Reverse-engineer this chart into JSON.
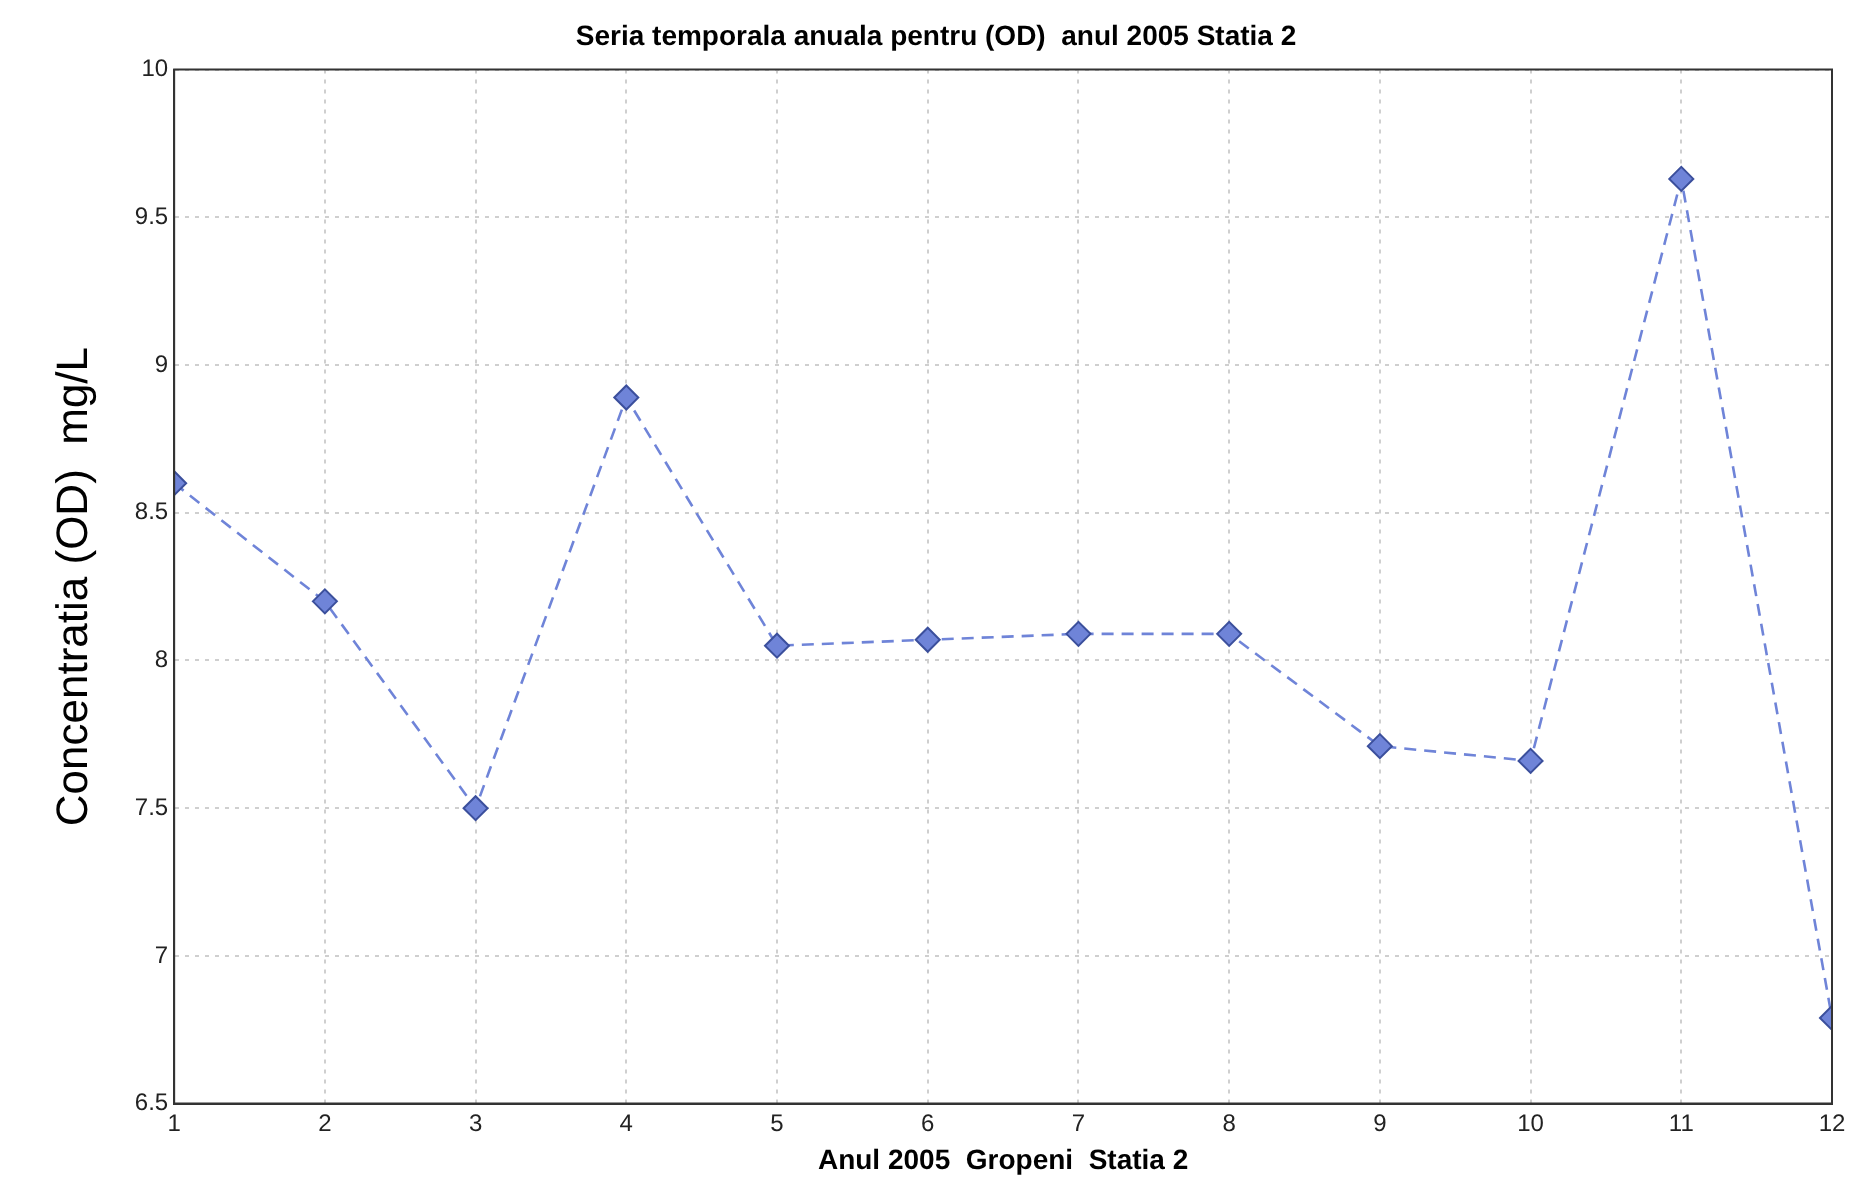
{
  "chart_data": {
    "type": "line",
    "title": "Seria temporala anuala pentru (OD)  anul 2005 Statia 2",
    "xlabel": "Anul 2005  Gropeni  Statia 2",
    "ylabel": "Concentratia (OD)  mg/L",
    "x": [
      1,
      2,
      3,
      4,
      5,
      6,
      7,
      8,
      9,
      10,
      11,
      12
    ],
    "series": [
      {
        "color": "#6f84d8",
        "values": [
          8.6,
          8.2,
          7.5,
          8.89,
          8.05,
          8.07,
          8.09,
          8.09,
          7.71,
          7.66,
          9.63,
          6.79
        ]
      }
    ],
    "xlim": [
      1,
      12
    ],
    "xticks": [
      1,
      2,
      3,
      4,
      5,
      6,
      7,
      8,
      9,
      10,
      11,
      12
    ],
    "ylim": [
      6.5,
      10
    ],
    "yticks": [
      6.5,
      7,
      7.5,
      8,
      8.5,
      9,
      9.5,
      10
    ],
    "grid": true,
    "legend": false,
    "marker": "diamond",
    "line_style": "dashed"
  }
}
